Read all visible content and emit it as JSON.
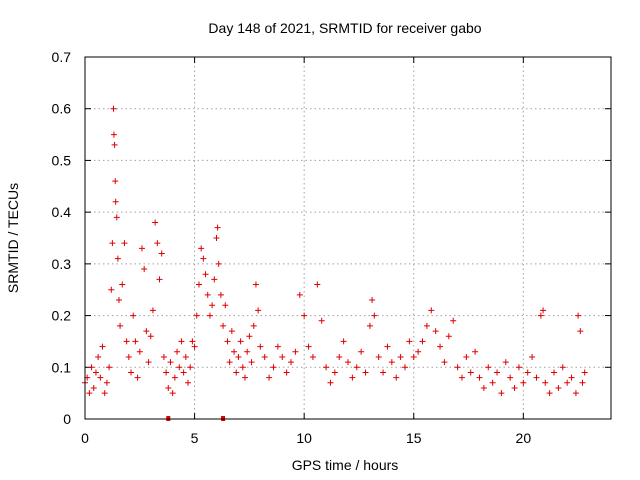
{
  "chart_data": {
    "type": "scatter",
    "title": "Day 148 of 2021, SRMTID for receiver gabo",
    "xlabel": "GPS time / hours",
    "ylabel": "SRMTID / TECUs",
    "xlim": [
      0,
      24
    ],
    "ylim": [
      0,
      0.7
    ],
    "xticks": [
      0,
      5,
      10,
      15,
      20
    ],
    "yticks": [
      0,
      0.1,
      0.2,
      0.3,
      0.4,
      0.5,
      0.6,
      0.7
    ],
    "xtick_labels": [
      "0",
      "5",
      "10",
      "15",
      "20"
    ],
    "ytick_labels": [
      "0",
      "0.1",
      "0.2",
      "0.3",
      "0.4",
      "0.5",
      "0.6",
      "0.7"
    ],
    "grid": true,
    "marker": "plus",
    "color": "#e00000",
    "series": [
      {
        "name": "SRMTID",
        "points": [
          [
            0.0,
            0.07
          ],
          [
            0.1,
            0.08
          ],
          [
            0.2,
            0.05
          ],
          [
            0.3,
            0.1
          ],
          [
            0.4,
            0.06
          ],
          [
            0.5,
            0.09
          ],
          [
            0.6,
            0.12
          ],
          [
            0.7,
            0.08
          ],
          [
            0.8,
            0.14
          ],
          [
            0.9,
            0.05
          ],
          [
            1.0,
            0.07
          ],
          [
            1.1,
            0.1
          ],
          [
            1.2,
            0.25
          ],
          [
            1.25,
            0.34
          ],
          [
            1.3,
            0.6
          ],
          [
            1.32,
            0.55
          ],
          [
            1.35,
            0.53
          ],
          [
            1.38,
            0.46
          ],
          [
            1.4,
            0.42
          ],
          [
            1.45,
            0.39
          ],
          [
            1.5,
            0.31
          ],
          [
            1.55,
            0.23
          ],
          [
            1.6,
            0.18
          ],
          [
            1.7,
            0.26
          ],
          [
            1.8,
            0.34
          ],
          [
            1.9,
            0.15
          ],
          [
            2.0,
            0.12
          ],
          [
            2.1,
            0.09
          ],
          [
            2.2,
            0.2
          ],
          [
            2.3,
            0.15
          ],
          [
            2.4,
            0.08
          ],
          [
            2.5,
            0.13
          ],
          [
            2.6,
            0.33
          ],
          [
            2.7,
            0.29
          ],
          [
            2.8,
            0.17
          ],
          [
            2.9,
            0.11
          ],
          [
            3.0,
            0.16
          ],
          [
            3.1,
            0.21
          ],
          [
            3.2,
            0.38
          ],
          [
            3.3,
            0.34
          ],
          [
            3.4,
            0.27
          ],
          [
            3.5,
            0.32
          ],
          [
            3.6,
            0.12
          ],
          [
            3.7,
            0.09
          ],
          [
            3.8,
            0.06
          ],
          [
            3.9,
            0.11
          ],
          [
            4.0,
            0.05
          ],
          [
            4.1,
            0.08
          ],
          [
            4.2,
            0.13
          ],
          [
            4.3,
            0.1
          ],
          [
            4.4,
            0.15
          ],
          [
            4.5,
            0.09
          ],
          [
            4.6,
            0.12
          ],
          [
            4.7,
            0.07
          ],
          [
            4.8,
            0.1
          ],
          [
            4.9,
            0.15
          ],
          [
            5.0,
            0.14
          ],
          [
            5.1,
            0.2
          ],
          [
            5.2,
            0.26
          ],
          [
            5.3,
            0.33
          ],
          [
            5.4,
            0.31
          ],
          [
            5.5,
            0.28
          ],
          [
            5.6,
            0.24
          ],
          [
            5.7,
            0.2
          ],
          [
            5.8,
            0.22
          ],
          [
            5.9,
            0.27
          ],
          [
            6.0,
            0.35
          ],
          [
            6.05,
            0.37
          ],
          [
            6.1,
            0.3
          ],
          [
            6.2,
            0.24
          ],
          [
            6.3,
            0.18
          ],
          [
            6.4,
            0.22
          ],
          [
            6.5,
            0.15
          ],
          [
            6.6,
            0.11
          ],
          [
            6.7,
            0.17
          ],
          [
            6.8,
            0.13
          ],
          [
            6.9,
            0.09
          ],
          [
            7.0,
            0.12
          ],
          [
            7.1,
            0.15
          ],
          [
            7.2,
            0.1
          ],
          [
            7.3,
            0.08
          ],
          [
            7.4,
            0.13
          ],
          [
            7.5,
            0.16
          ],
          [
            7.6,
            0.11
          ],
          [
            7.7,
            0.18
          ],
          [
            7.8,
            0.26
          ],
          [
            7.9,
            0.21
          ],
          [
            8.0,
            0.14
          ],
          [
            8.2,
            0.12
          ],
          [
            8.4,
            0.08
          ],
          [
            8.6,
            0.1
          ],
          [
            8.8,
            0.14
          ],
          [
            9.0,
            0.12
          ],
          [
            9.2,
            0.09
          ],
          [
            9.4,
            0.11
          ],
          [
            9.6,
            0.13
          ],
          [
            9.8,
            0.24
          ],
          [
            10.0,
            0.2
          ],
          [
            10.2,
            0.14
          ],
          [
            10.4,
            0.12
          ],
          [
            10.6,
            0.26
          ],
          [
            10.8,
            0.19
          ],
          [
            11.0,
            0.1
          ],
          [
            11.2,
            0.07
          ],
          [
            11.4,
            0.09
          ],
          [
            11.6,
            0.12
          ],
          [
            11.8,
            0.15
          ],
          [
            12.0,
            0.11
          ],
          [
            12.2,
            0.08
          ],
          [
            12.4,
            0.1
          ],
          [
            12.6,
            0.13
          ],
          [
            12.8,
            0.09
          ],
          [
            13.0,
            0.18
          ],
          [
            13.1,
            0.23
          ],
          [
            13.2,
            0.2
          ],
          [
            13.4,
            0.12
          ],
          [
            13.6,
            0.09
          ],
          [
            13.8,
            0.14
          ],
          [
            14.0,
            0.11
          ],
          [
            14.2,
            0.08
          ],
          [
            14.4,
            0.12
          ],
          [
            14.6,
            0.1
          ],
          [
            14.8,
            0.15
          ],
          [
            15.0,
            0.12
          ],
          [
            15.2,
            0.13
          ],
          [
            15.4,
            0.15
          ],
          [
            15.6,
            0.18
          ],
          [
            15.8,
            0.21
          ],
          [
            16.0,
            0.17
          ],
          [
            16.2,
            0.14
          ],
          [
            16.4,
            0.11
          ],
          [
            16.6,
            0.16
          ],
          [
            16.8,
            0.19
          ],
          [
            17.0,
            0.1
          ],
          [
            17.2,
            0.08
          ],
          [
            17.4,
            0.12
          ],
          [
            17.6,
            0.09
          ],
          [
            17.8,
            0.13
          ],
          [
            18.0,
            0.08
          ],
          [
            18.2,
            0.06
          ],
          [
            18.4,
            0.1
          ],
          [
            18.6,
            0.07
          ],
          [
            18.8,
            0.09
          ],
          [
            19.0,
            0.05
          ],
          [
            19.2,
            0.11
          ],
          [
            19.4,
            0.08
          ],
          [
            19.6,
            0.06
          ],
          [
            19.8,
            0.1
          ],
          [
            20.0,
            0.07
          ],
          [
            20.2,
            0.09
          ],
          [
            20.4,
            0.12
          ],
          [
            20.6,
            0.08
          ],
          [
            20.8,
            0.2
          ],
          [
            20.9,
            0.21
          ],
          [
            21.0,
            0.07
          ],
          [
            21.2,
            0.05
          ],
          [
            21.4,
            0.09
          ],
          [
            21.6,
            0.06
          ],
          [
            21.8,
            0.1
          ],
          [
            22.0,
            0.07
          ],
          [
            22.2,
            0.08
          ],
          [
            22.4,
            0.05
          ],
          [
            22.5,
            0.2
          ],
          [
            22.6,
            0.17
          ],
          [
            22.7,
            0.07
          ],
          [
            22.8,
            0.09
          ],
          [
            3.8,
            0.0
          ],
          [
            6.3,
            0.0
          ]
        ]
      }
    ]
  }
}
